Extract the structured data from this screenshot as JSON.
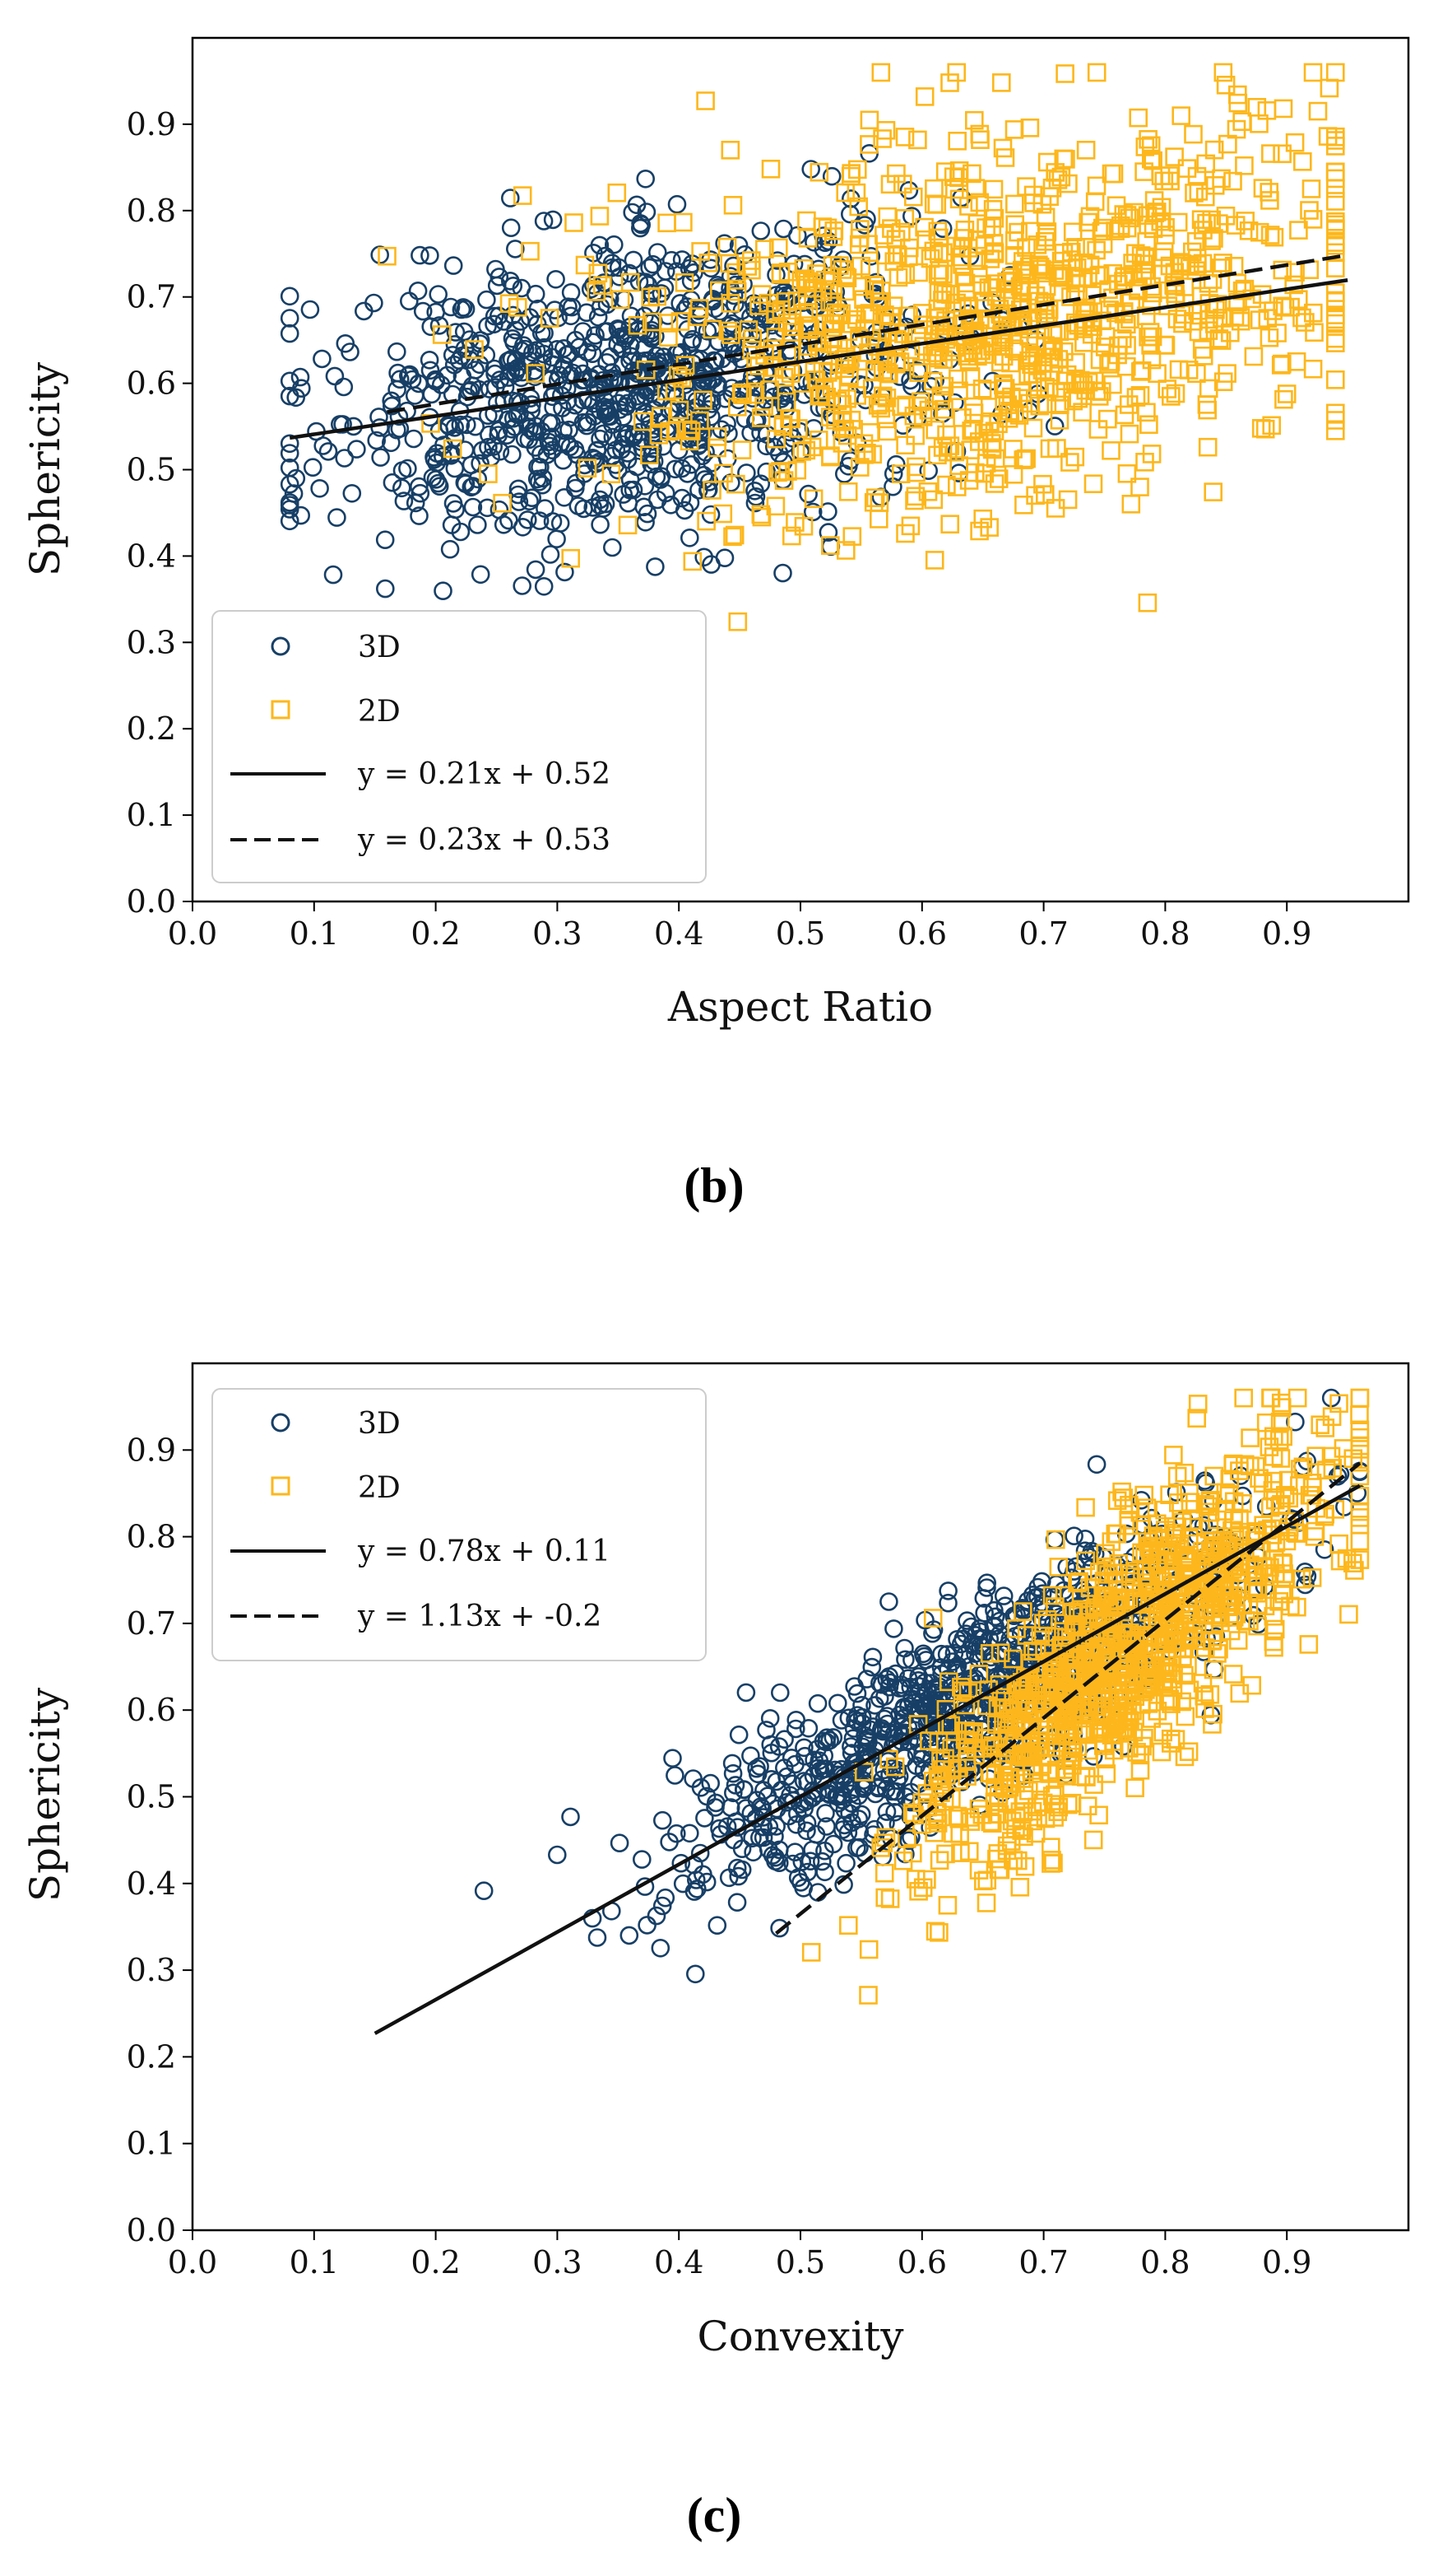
{
  "colors": {
    "series_3d": "#173f66",
    "series_2d": "#fdb71c",
    "fit": "#111111"
  },
  "chart_data": [
    {
      "type": "scatter",
      "panel_label": "(b)",
      "xlabel": "Aspect Ratio",
      "ylabel": "Sphericity",
      "xlim": [
        0.0,
        1.0
      ],
      "ylim": [
        0.0,
        1.0
      ],
      "xticks": [
        "0.0",
        "0.1",
        "0.2",
        "0.3",
        "0.4",
        "0.5",
        "0.6",
        "0.7",
        "0.8",
        "0.9"
      ],
      "yticks": [
        "0.0",
        "0.1",
        "0.2",
        "0.3",
        "0.4",
        "0.5",
        "0.6",
        "0.7",
        "0.8",
        "0.9"
      ],
      "legend_position": "lower-left",
      "legend": [
        "3D",
        "2D",
        "y = 0.21x + 0.52",
        "y = 0.23x + 0.53"
      ],
      "series": [
        {
          "name": "3D",
          "marker": "circle",
          "n": 900,
          "x_range": [
            0.08,
            0.95
          ],
          "x_center": 0.36,
          "x_spread": 0.13,
          "slope": 0.21,
          "intercept": 0.52,
          "noise": 0.085
        },
        {
          "name": "2D",
          "marker": "square",
          "n": 1000,
          "x_range": [
            0.16,
            0.94
          ],
          "x_center": 0.66,
          "x_spread": 0.15,
          "slope": 0.23,
          "intercept": 0.53,
          "noise": 0.11
        }
      ],
      "fit_lines": [
        {
          "label": "y = 0.21x + 0.52",
          "slope": 0.21,
          "intercept": 0.52,
          "x_range": [
            0.08,
            0.95
          ],
          "style": "solid"
        },
        {
          "label": "y = 0.23x + 0.53",
          "slope": 0.23,
          "intercept": 0.53,
          "x_range": [
            0.16,
            0.95
          ],
          "style": "dashed"
        }
      ]
    },
    {
      "type": "scatter",
      "panel_label": "(c)",
      "xlabel": "Convexity",
      "ylabel": "Sphericity",
      "xlim": [
        0.0,
        1.0
      ],
      "ylim": [
        0.0,
        1.0
      ],
      "xticks": [
        "0.0",
        "0.1",
        "0.2",
        "0.3",
        "0.4",
        "0.5",
        "0.6",
        "0.7",
        "0.8",
        "0.9"
      ],
      "yticks": [
        "0.0",
        "0.1",
        "0.2",
        "0.3",
        "0.4",
        "0.5",
        "0.6",
        "0.7",
        "0.8",
        "0.9"
      ],
      "legend_position": "upper-left",
      "legend": [
        "3D",
        "2D",
        "y = 0.78x + 0.11",
        "y = 1.13x + -0.2"
      ],
      "series": [
        {
          "name": "3D",
          "marker": "circle",
          "n": 900,
          "x_range": [
            0.15,
            0.96
          ],
          "x_center": 0.63,
          "x_spread": 0.12,
          "slope": 0.78,
          "intercept": 0.11,
          "noise": 0.055
        },
        {
          "name": "2D",
          "marker": "square",
          "n": 1000,
          "x_range": [
            0.48,
            0.96
          ],
          "x_center": 0.77,
          "x_spread": 0.09,
          "slope": 1.13,
          "intercept": -0.2,
          "noise": 0.07
        }
      ],
      "fit_lines": [
        {
          "label": "y = 0.78x + 0.11",
          "slope": 0.78,
          "intercept": 0.11,
          "x_range": [
            0.15,
            0.96
          ],
          "style": "solid"
        },
        {
          "label": "y = 1.13x + -0.2",
          "slope": 1.13,
          "intercept": -0.2,
          "x_range": [
            0.48,
            0.96
          ],
          "style": "dashed"
        }
      ]
    }
  ]
}
